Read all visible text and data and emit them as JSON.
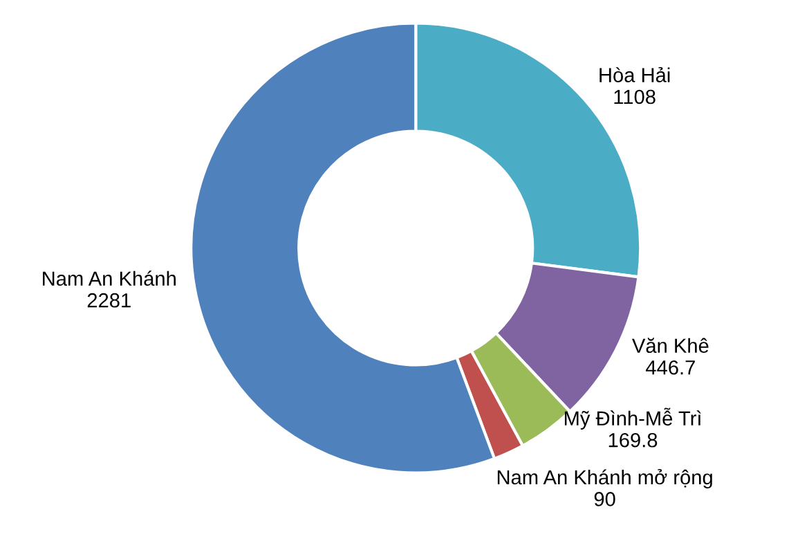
{
  "chart_data": {
    "type": "donut",
    "categories": [
      "Hòa Hải",
      "Văn Khê",
      "Mỹ Đình-Mễ Trì",
      "Nam An Khánh mở rộng",
      "Nam An Khánh"
    ],
    "values": [
      1108,
      446.7,
      169.8,
      90,
      2281
    ],
    "colors": [
      "#4bacc6",
      "#8064a2",
      "#9bbb59",
      "#c0504d",
      "#4f81bd"
    ],
    "data_labels": true,
    "legend": false
  }
}
